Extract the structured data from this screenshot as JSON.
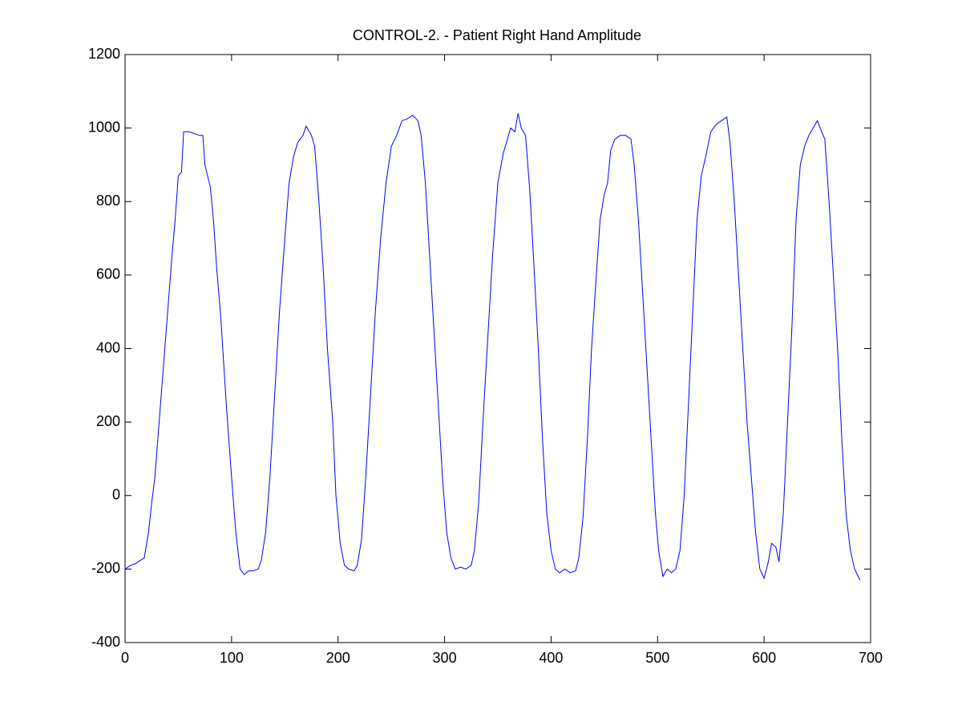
{
  "chart_data": {
    "type": "line",
    "title": "CONTROL-2. - Patient Right Hand Amplitude",
    "xlim": [
      0,
      700
    ],
    "xticks": [
      0,
      100,
      200,
      300,
      400,
      500,
      600,
      700
    ],
    "ylim": [
      -400,
      1200
    ],
    "yticks": [
      -400,
      -200,
      0,
      200,
      400,
      600,
      800,
      1000,
      1200
    ],
    "grid": false,
    "series": [
      {
        "color": "#0000ff",
        "x": [
          0,
          5,
          10,
          15,
          18,
          22,
          25,
          28,
          32,
          36,
          40,
          44,
          47,
          50,
          53,
          55,
          60,
          65,
          70,
          73,
          75,
          80,
          83,
          86,
          90,
          95,
          100,
          104,
          108,
          112,
          116,
          120,
          125,
          128,
          132,
          136,
          140,
          145,
          150,
          154,
          158,
          162,
          167,
          170,
          175,
          178,
          182,
          186,
          190,
          195,
          198,
          202,
          206,
          210,
          215,
          218,
          222,
          226,
          230,
          235,
          240,
          245,
          250,
          255,
          260,
          265,
          270,
          275,
          278,
          282,
          286,
          290,
          294,
          298,
          302,
          306,
          310,
          315,
          320,
          325,
          328,
          332,
          336,
          340,
          345,
          350,
          355,
          358,
          362,
          366,
          369,
          372,
          376,
          380,
          384,
          388,
          392,
          396,
          400,
          404,
          408,
          413,
          418,
          423,
          426,
          430,
          434,
          438,
          442,
          446,
          450,
          453,
          456,
          460,
          465,
          470,
          475,
          478,
          482,
          486,
          490,
          494,
          498,
          501,
          505,
          509,
          513,
          517,
          521,
          525,
          529,
          533,
          537,
          541,
          545,
          550,
          555,
          560,
          565,
          568,
          572,
          576,
          580,
          584,
          588,
          592,
          596,
          600,
          604,
          607,
          611,
          614,
          618,
          622,
          626,
          630,
          634,
          638,
          642,
          646,
          650,
          654,
          657,
          661,
          665,
          669,
          673,
          677,
          681,
          685,
          690
        ],
        "values": [
          -200,
          -190,
          -185,
          -175,
          -170,
          -100,
          -20,
          50,
          200,
          350,
          500,
          650,
          750,
          870,
          880,
          990,
          990,
          985,
          980,
          980,
          900,
          840,
          750,
          620,
          480,
          250,
          50,
          -100,
          -200,
          -215,
          -205,
          -205,
          -200,
          -175,
          -100,
          50,
          250,
          500,
          700,
          850,
          920,
          960,
          980,
          1005,
          980,
          950,
          800,
          620,
          400,
          200,
          0,
          -130,
          -190,
          -200,
          -205,
          -190,
          -120,
          50,
          250,
          500,
          700,
          850,
          950,
          980,
          1020,
          1025,
          1035,
          1020,
          980,
          850,
          650,
          450,
          250,
          50,
          -100,
          -170,
          -200,
          -195,
          -200,
          -190,
          -150,
          -20,
          200,
          400,
          650,
          850,
          930,
          960,
          1000,
          990,
          1040,
          1000,
          980,
          830,
          620,
          400,
          150,
          -50,
          -150,
          -200,
          -210,
          -200,
          -210,
          -205,
          -170,
          -60,
          150,
          400,
          580,
          750,
          820,
          850,
          940,
          970,
          980,
          980,
          970,
          900,
          750,
          550,
          350,
          150,
          -50,
          -150,
          -220,
          -200,
          -210,
          -200,
          -150,
          0,
          250,
          500,
          750,
          870,
          920,
          990,
          1010,
          1020,
          1030,
          960,
          800,
          600,
          400,
          200,
          50,
          -100,
          -200,
          -225,
          -180,
          -130,
          -140,
          -180,
          -50,
          200,
          450,
          750,
          900,
          950,
          980,
          1000,
          1020,
          990,
          970,
          800,
          600,
          400,
          150,
          -50,
          -150,
          -200,
          -230
        ]
      }
    ]
  }
}
